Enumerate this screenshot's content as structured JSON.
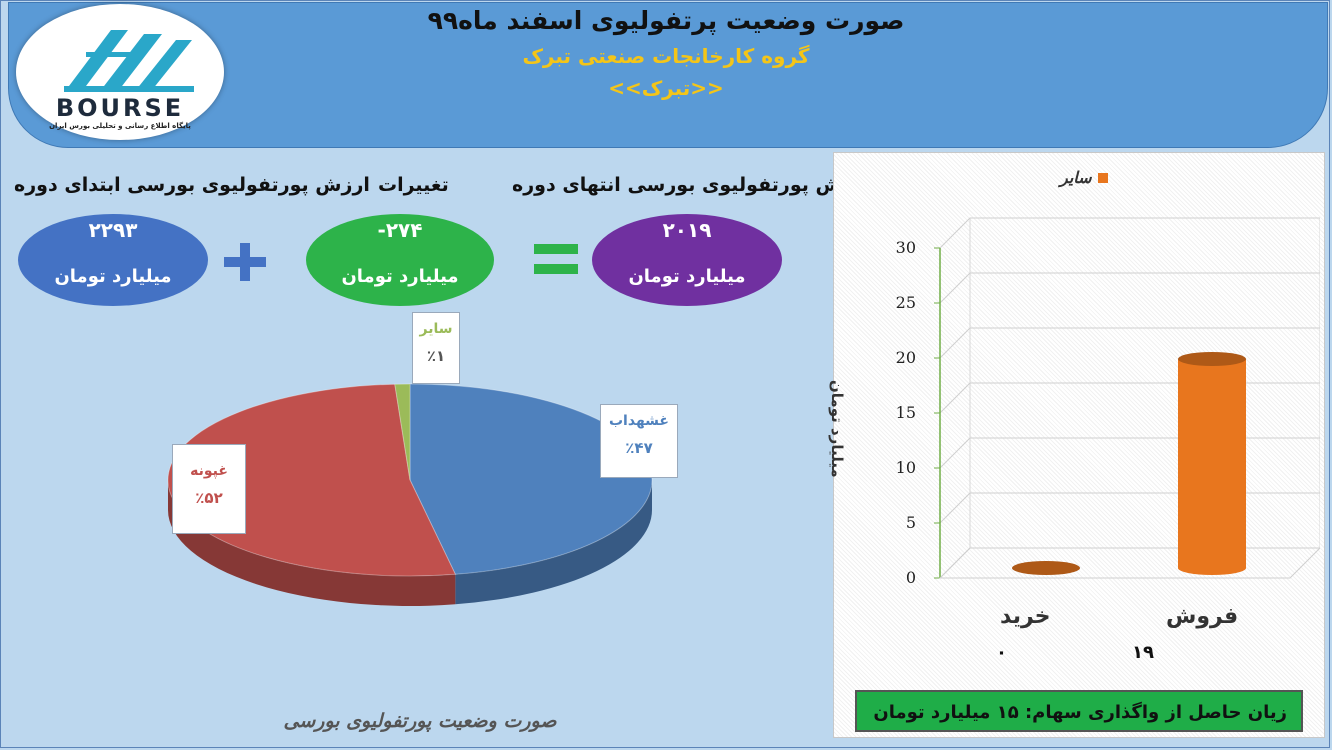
{
  "header": {
    "title": "صورت وضعیت پرتفولیوی اسفند ماه۹۹",
    "subtitle": "گروه کارخانجات صنعتی تبرک",
    "symbol": "<<تبرک>>",
    "logo_word": "BOURSE",
    "logo_caption": "پایگاه اطلاع رسانی و تحلیلی بورس ایران"
  },
  "summary": {
    "start": {
      "label": "ارزش پورتفولیوی بورسی ابتدای دوره",
      "value": "۲۲۹۳",
      "unit": "میلیارد تومان",
      "color": "#4472c4"
    },
    "change": {
      "label": "تغییرات",
      "value": "-۲۷۴",
      "unit": "میلیارد تومان",
      "color": "#2db34a"
    },
    "end": {
      "label": "ارزش پورتفولیوی بورسی انتهای دوره",
      "value": "۲۰۱۹",
      "unit": "میلیارد تومان",
      "color": "#7030a0"
    },
    "plus_icon": "plus-sign",
    "equals_icon": "equals-sign"
  },
  "chart_data": [
    {
      "type": "pie",
      "title": "صورت وضعیت پورتفولیوی بورسی",
      "slices": [
        {
          "name": "غشهداب",
          "value": 47,
          "label": "٪۴۷",
          "color": "#4f81bd"
        },
        {
          "name": "غپونه",
          "value": 52,
          "label": "٪۵۲",
          "color": "#c0504d"
        },
        {
          "name": "سایر",
          "value": 1,
          "label": "٪۱",
          "color": "#9bbb59"
        }
      ]
    },
    {
      "type": "bar",
      "categories": [
        "خرید",
        "فروش"
      ],
      "series": [
        {
          "name": "سایر",
          "values": [
            0,
            19
          ],
          "color": "#e8761e"
        }
      ],
      "value_labels": [
        "۰",
        "۱۹"
      ],
      "ylabel": "میلیارد تومان",
      "ylim": [
        0,
        30
      ],
      "yticks": [
        "0",
        "5",
        "10",
        "15",
        "20",
        "25",
        "30"
      ],
      "legend_position": "top",
      "style": "3d-cylinder"
    }
  ],
  "footer_note": "زیان حاصل از واگذاری سهام: ۱۵ میلیارد تومان"
}
